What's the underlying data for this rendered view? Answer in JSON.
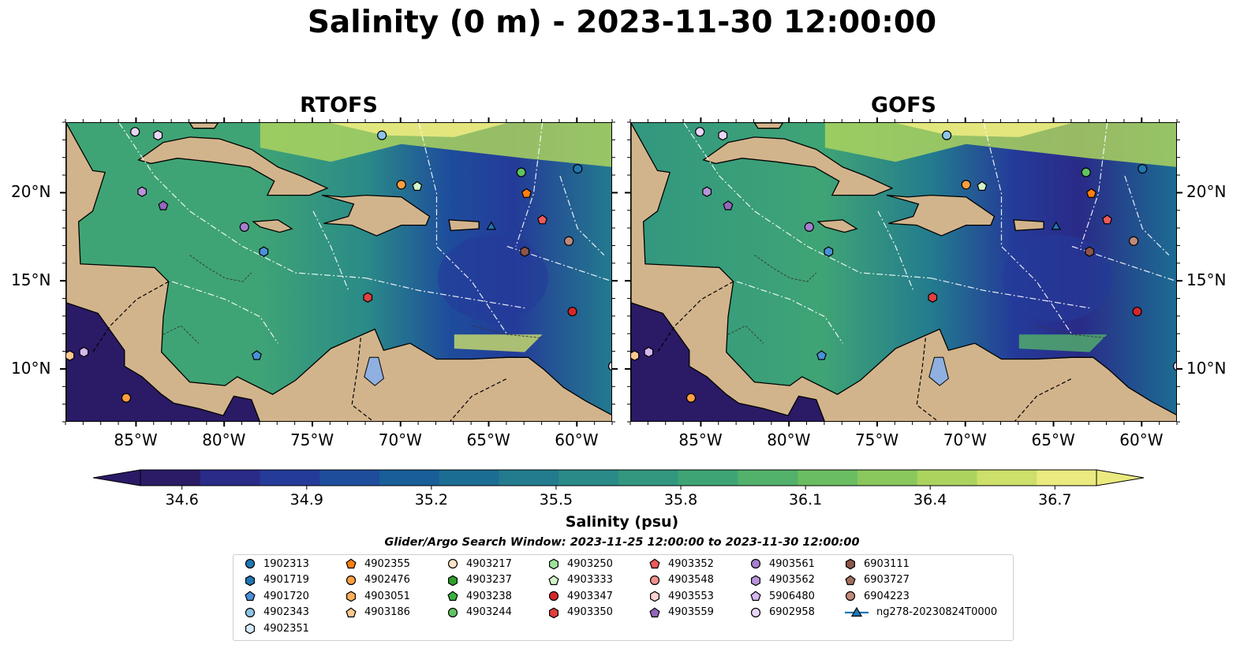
{
  "title": "Salinity (0 m) - 2023-11-30 12:00:00",
  "panels": [
    {
      "name": "RTOFS"
    },
    {
      "name": "GOFS"
    }
  ],
  "map_extent": {
    "lon": [
      -89,
      -58
    ],
    "lat": [
      7,
      24
    ]
  },
  "lon_ticks": [
    {
      "value": -85,
      "label": "85°W"
    },
    {
      "value": -80,
      "label": "80°W"
    },
    {
      "value": -75,
      "label": "75°W"
    },
    {
      "value": -70,
      "label": "70°W"
    },
    {
      "value": -65,
      "label": "65°W"
    },
    {
      "value": -60,
      "label": "60°W"
    }
  ],
  "lat_ticks": [
    {
      "value": 20,
      "label": "20°N"
    },
    {
      "value": 15,
      "label": "15°N"
    },
    {
      "value": 10,
      "label": "10°N"
    }
  ],
  "colorbar": {
    "label": "Salinity (psu)",
    "min": 34.5,
    "max": 36.8,
    "ticks": [
      "34.6",
      "34.9",
      "35.2",
      "35.5",
      "35.8",
      "36.1",
      "36.4",
      "36.7"
    ],
    "colors": [
      "#2b1a66",
      "#2a2a88",
      "#243b99",
      "#1e4d9c",
      "#185e98",
      "#1c6d93",
      "#237b8e",
      "#2a8a88",
      "#32977f",
      "#3fa475",
      "#52b16a",
      "#6abd60",
      "#8ac75c",
      "#abd35e",
      "#cce06a",
      "#eaea80"
    ]
  },
  "search_window": "Glider/Argo Search Window: 2023-11-25 12:00:00 to 2023-11-30 12:00:00",
  "legend": [
    {
      "label": "1902313",
      "color": "#1f77b4",
      "marker": "circle"
    },
    {
      "label": "4901719",
      "color": "#1f77b4",
      "marker": "hexagon"
    },
    {
      "label": "4901720",
      "color": "#4a90d9",
      "marker": "pentagon"
    },
    {
      "label": "4902343",
      "color": "#8ec3e8",
      "marker": "circle"
    },
    {
      "label": "4902351",
      "color": "#d6ebf7",
      "marker": "hexagon"
    },
    {
      "label": "4902355",
      "color": "#ff7f0e",
      "marker": "pentagon"
    },
    {
      "label": "4902476",
      "color": "#ff9f40",
      "marker": "circle"
    },
    {
      "label": "4903051",
      "color": "#ffb05a",
      "marker": "hexagon"
    },
    {
      "label": "4903186",
      "color": "#ffc88f",
      "marker": "pentagon"
    },
    {
      "label": "4903217",
      "color": "#ffe3c8",
      "marker": "circle"
    },
    {
      "label": "4903237",
      "color": "#2ca02c",
      "marker": "hexagon"
    },
    {
      "label": "4903238",
      "color": "#3cb043",
      "marker": "pentagon"
    },
    {
      "label": "4903244",
      "color": "#5fc45f",
      "marker": "circle"
    },
    {
      "label": "4903250",
      "color": "#9de39d",
      "marker": "hexagon"
    },
    {
      "label": "4903333",
      "color": "#d2f5c8",
      "marker": "pentagon"
    },
    {
      "label": "4903347",
      "color": "#d62728",
      "marker": "circle"
    },
    {
      "label": "4903350",
      "color": "#e04040",
      "marker": "hexagon"
    },
    {
      "label": "4903352",
      "color": "#ee5a5a",
      "marker": "pentagon"
    },
    {
      "label": "4903548",
      "color": "#f29090",
      "marker": "circle"
    },
    {
      "label": "4903553",
      "color": "#fcd2d2",
      "marker": "hexagon"
    },
    {
      "label": "4903559",
      "color": "#9467bd",
      "marker": "pentagon"
    },
    {
      "label": "4903561",
      "color": "#a67fcf",
      "marker": "circle"
    },
    {
      "label": "4903562",
      "color": "#b993dc",
      "marker": "hexagon"
    },
    {
      "label": "5906480",
      "color": "#d4b8ee",
      "marker": "pentagon"
    },
    {
      "label": "6902958",
      "color": "#ead6f7",
      "marker": "circle"
    },
    {
      "label": "6903111",
      "color": "#8c564b",
      "marker": "hexagon"
    },
    {
      "label": "6903727",
      "color": "#a0705f",
      "marker": "pentagon"
    },
    {
      "label": "6904223",
      "color": "#c08a7a",
      "marker": "circle"
    },
    {
      "label": "ng278-20230824T0000",
      "color": "#1f77b4",
      "marker": "triangle-line"
    }
  ],
  "floats": [
    {
      "lon": -85.1,
      "lat": 23.5,
      "marker": "circle",
      "color": "#ead6f7"
    },
    {
      "lon": -83.8,
      "lat": 23.3,
      "marker": "hexagon",
      "color": "#ead6f7"
    },
    {
      "lon": -71.1,
      "lat": 23.3,
      "marker": "circle",
      "color": "#8ec3e8"
    },
    {
      "lon": -84.7,
      "lat": 20.1,
      "marker": "hexagon",
      "color": "#b993dc"
    },
    {
      "lon": -83.5,
      "lat": 19.3,
      "marker": "pentagon",
      "color": "#9467bd"
    },
    {
      "lon": -78.9,
      "lat": 18.1,
      "marker": "circle",
      "color": "#a67fcf"
    },
    {
      "lon": -77.8,
      "lat": 16.7,
      "marker": "hexagon",
      "color": "#4a90d9"
    },
    {
      "lon": -70.0,
      "lat": 20.5,
      "marker": "circle",
      "color": "#ff9f40"
    },
    {
      "lon": -69.1,
      "lat": 20.4,
      "marker": "pentagon",
      "color": "#d2f5c8"
    },
    {
      "lon": -63.2,
      "lat": 21.2,
      "marker": "circle",
      "color": "#5fc45f"
    },
    {
      "lon": -60.0,
      "lat": 21.4,
      "marker": "circle",
      "color": "#1f77b4"
    },
    {
      "lon": -62.9,
      "lat": 20.0,
      "marker": "pentagon",
      "color": "#ff7f0e"
    },
    {
      "lon": -62.0,
      "lat": 18.5,
      "marker": "pentagon",
      "color": "#ee5a5a"
    },
    {
      "lon": -60.5,
      "lat": 17.3,
      "marker": "circle",
      "color": "#c08a7a"
    },
    {
      "lon": -63.0,
      "lat": 16.7,
      "marker": "hexagon",
      "color": "#8c564b"
    },
    {
      "lon": -71.9,
      "lat": 14.1,
      "marker": "hexagon",
      "color": "#e04040"
    },
    {
      "lon": -60.3,
      "lat": 13.3,
      "marker": "circle",
      "color": "#d62728"
    },
    {
      "lon": -78.2,
      "lat": 10.8,
      "marker": "pentagon",
      "color": "#4a90d9"
    },
    {
      "lon": -88.8,
      "lat": 10.8,
      "marker": "hexagon",
      "color": "#ffc88f"
    },
    {
      "lon": -88.0,
      "lat": 11.0,
      "marker": "hexagon",
      "color": "#d4b8ee"
    },
    {
      "lon": -85.6,
      "lat": 8.4,
      "marker": "circle",
      "color": "#ff9f40"
    },
    {
      "lon": -58.0,
      "lat": 10.2,
      "marker": "circle",
      "color": "#ead6f7"
    },
    {
      "lon": -64.9,
      "lat": 18.1,
      "marker": "triangle",
      "color": "#1f77b4"
    }
  ]
}
